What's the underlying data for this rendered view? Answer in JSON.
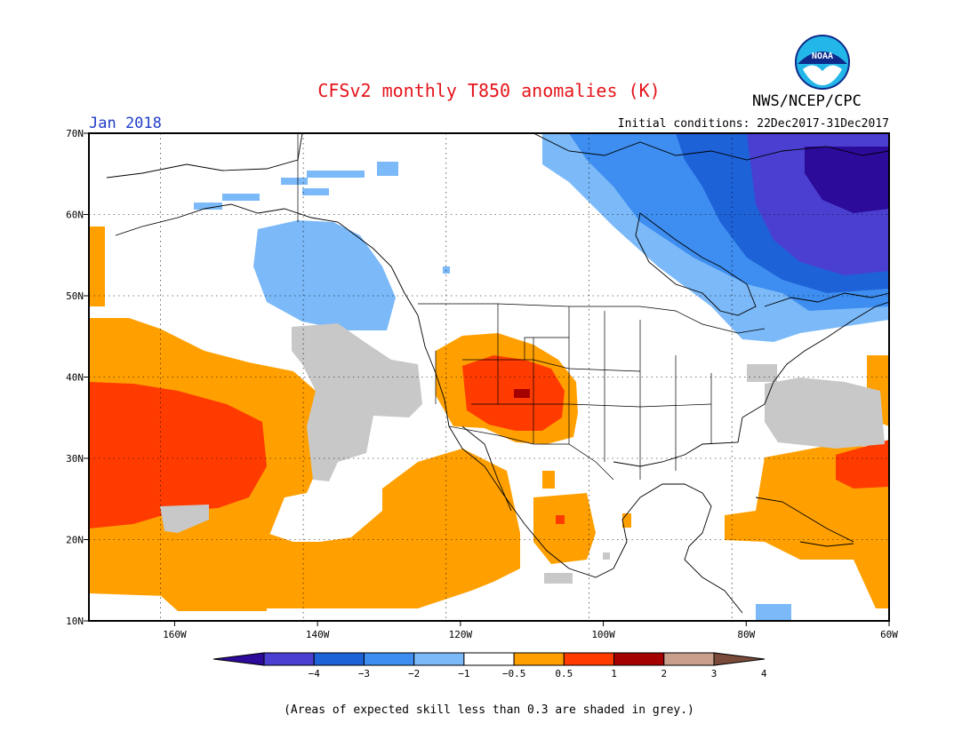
{
  "header": {
    "title": "CFSv2 monthly T850 anomalies (K)",
    "agency": "NWS/NCEP/CPC",
    "logo_text": "NOAA",
    "valid_month": "Jan 2018",
    "initial_conditions": "Initial conditions: 22Dec2017-31Dec2017"
  },
  "map": {
    "lon_range": [
      -172,
      -60
    ],
    "lat_range": [
      10,
      70
    ],
    "lon_labels": [
      "160W",
      "140W",
      "120W",
      "100W",
      "80W",
      "60W"
    ],
    "lon_values": [
      -160,
      -140,
      -120,
      -100,
      -80,
      -60
    ],
    "lat_labels": [
      "70N",
      "60N",
      "50N",
      "40N",
      "30N",
      "20N",
      "10N"
    ],
    "lat_values": [
      70,
      60,
      50,
      40,
      30,
      20,
      10
    ]
  },
  "colorbar": {
    "colors": [
      "#2c0a9a",
      "#4a3fd0",
      "#1e62d8",
      "#3d8ef0",
      "#7bb9f8",
      "#ffffff",
      "#ffa000",
      "#ff3b00",
      "#a50000",
      "#c9a08c",
      "#7a4a3a"
    ],
    "tick_labels": [
      "−4",
      "−3",
      "−2",
      "−1",
      "−0.5",
      "0.5",
      "1",
      "2",
      "3",
      "4"
    ]
  },
  "footnote": "(Areas of expected skill less than 0.3 are shaded in grey.)",
  "colors": {
    "grey_skill": "#c8c8c8",
    "title_red": "#e4141b",
    "month_blue": "#1f3cc8"
  }
}
